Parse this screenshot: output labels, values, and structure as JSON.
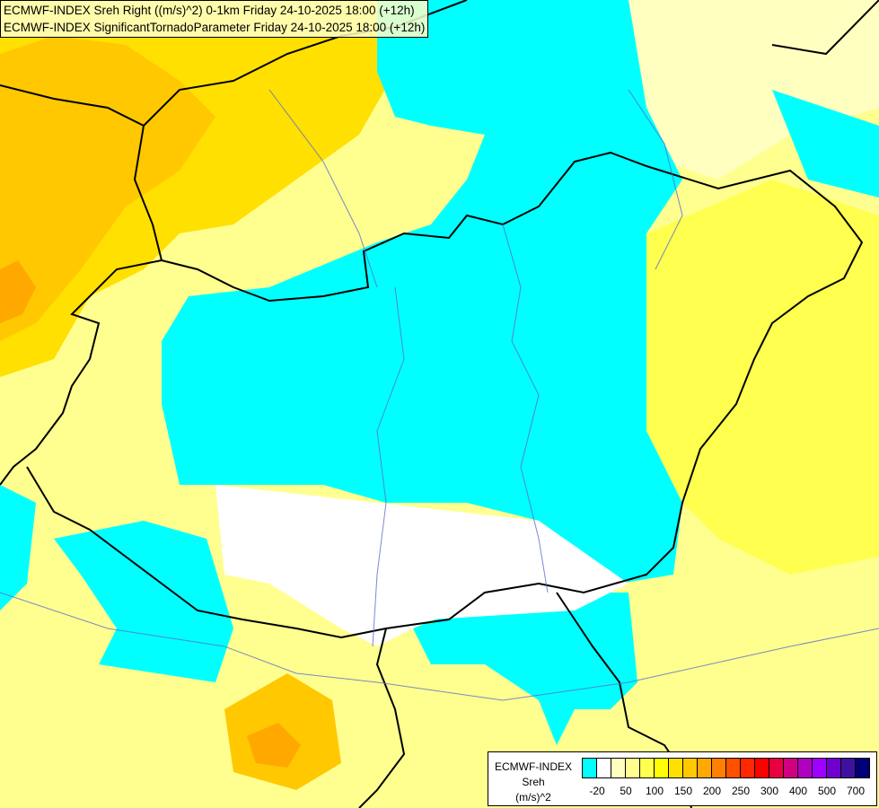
{
  "title": {
    "line1": "ECMWF-INDEX Sreh Right ((m/s)^2) 0-1km Friday 24-10-2025 18:00 (+12h)",
    "line2": "ECMWF-INDEX SignificantTornadoParameter Friday 24-10-2025 18:00 (+12h)"
  },
  "legend": {
    "source": "ECMWF-INDEX",
    "variable": "Sreh",
    "unit": "(m/s)^2",
    "colors": [
      "#00ffff",
      "#ffffff",
      "#ffffc0",
      "#ffff90",
      "#ffff50",
      "#ffff00",
      "#ffe000",
      "#ffc800",
      "#ffa800",
      "#ff8000",
      "#ff5000",
      "#ff2800",
      "#ff0000",
      "#e80040",
      "#d00080",
      "#b000c0",
      "#a000ff",
      "#7000d0",
      "#4010a0",
      "#000078"
    ],
    "labels": [
      "-20",
      "50",
      "100",
      "150",
      "200",
      "250",
      "300",
      "400",
      "500",
      "700"
    ]
  }
}
